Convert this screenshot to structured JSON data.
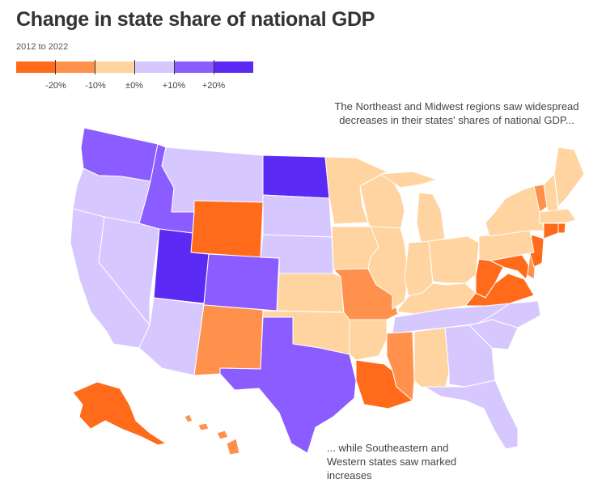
{
  "header": {
    "title": "Change in state share of national GDP",
    "subtitle": "2012 to 2022"
  },
  "legend": {
    "colors": [
      "#ff6b1a",
      "#ff914d",
      "#ffd4a0",
      "#d6c8ff",
      "#8b5cff",
      "#5b2af5"
    ],
    "labels": [
      "-20%",
      "-10%",
      "±0%",
      "+10%",
      "+20%"
    ]
  },
  "annotations": {
    "northeast": "The Northeast and Midwest regions saw widespread decreases in their states' shares of national GDP...",
    "southwest": "... while Southeastern and Western states saw marked increases"
  },
  "map_data": {
    "classes": {
      "dark_orange": "#ff6b1a",
      "orange": "#ff914d",
      "peach": "#ffd4a0",
      "lavender": "#d6c8ff",
      "purple": "#8b5cff",
      "dark_purple": "#5b2af5"
    },
    "states": [
      {
        "name": "Washington",
        "class": "purple"
      },
      {
        "name": "Oregon",
        "class": "lavender"
      },
      {
        "name": "California",
        "class": "lavender"
      },
      {
        "name": "Nevada",
        "class": "lavender"
      },
      {
        "name": "Idaho",
        "class": "purple"
      },
      {
        "name": "Montana",
        "class": "lavender"
      },
      {
        "name": "Wyoming",
        "class": "dark_orange"
      },
      {
        "name": "Utah",
        "class": "dark_purple"
      },
      {
        "name": "Colorado",
        "class": "purple"
      },
      {
        "name": "Arizona",
        "class": "lavender"
      },
      {
        "name": "New Mexico",
        "class": "orange"
      },
      {
        "name": "North Dakota",
        "class": "dark_purple"
      },
      {
        "name": "South Dakota",
        "class": "lavender"
      },
      {
        "name": "Nebraska",
        "class": "lavender"
      },
      {
        "name": "Kansas",
        "class": "peach"
      },
      {
        "name": "Oklahoma",
        "class": "peach"
      },
      {
        "name": "Texas",
        "class": "purple"
      },
      {
        "name": "Minnesota",
        "class": "peach"
      },
      {
        "name": "Iowa",
        "class": "peach"
      },
      {
        "name": "Missouri",
        "class": "orange"
      },
      {
        "name": "Arkansas",
        "class": "peach"
      },
      {
        "name": "Louisiana",
        "class": "dark_orange"
      },
      {
        "name": "Wisconsin",
        "class": "peach"
      },
      {
        "name": "Illinois",
        "class": "peach"
      },
      {
        "name": "Michigan",
        "class": "peach"
      },
      {
        "name": "Indiana",
        "class": "peach"
      },
      {
        "name": "Ohio",
        "class": "peach"
      },
      {
        "name": "Kentucky",
        "class": "peach"
      },
      {
        "name": "Tennessee",
        "class": "lavender"
      },
      {
        "name": "Mississippi",
        "class": "orange"
      },
      {
        "name": "Alabama",
        "class": "peach"
      },
      {
        "name": "Georgia",
        "class": "lavender"
      },
      {
        "name": "Florida",
        "class": "lavender"
      },
      {
        "name": "South Carolina",
        "class": "lavender"
      },
      {
        "name": "North Carolina",
        "class": "lavender"
      },
      {
        "name": "Virginia",
        "class": "dark_orange"
      },
      {
        "name": "West Virginia",
        "class": "dark_orange"
      },
      {
        "name": "Pennsylvania",
        "class": "peach"
      },
      {
        "name": "New York",
        "class": "peach"
      },
      {
        "name": "Vermont",
        "class": "orange"
      },
      {
        "name": "New Hampshire",
        "class": "peach"
      },
      {
        "name": "Maine",
        "class": "peach"
      },
      {
        "name": "Massachusetts",
        "class": "peach"
      },
      {
        "name": "Rhode Island",
        "class": "dark_orange"
      },
      {
        "name": "Connecticut",
        "class": "dark_orange"
      },
      {
        "name": "New Jersey",
        "class": "dark_orange"
      },
      {
        "name": "Delaware",
        "class": "orange"
      },
      {
        "name": "Maryland",
        "class": "dark_orange"
      },
      {
        "name": "Alaska",
        "class": "dark_orange"
      },
      {
        "name": "Hawaii",
        "class": "orange"
      }
    ]
  }
}
